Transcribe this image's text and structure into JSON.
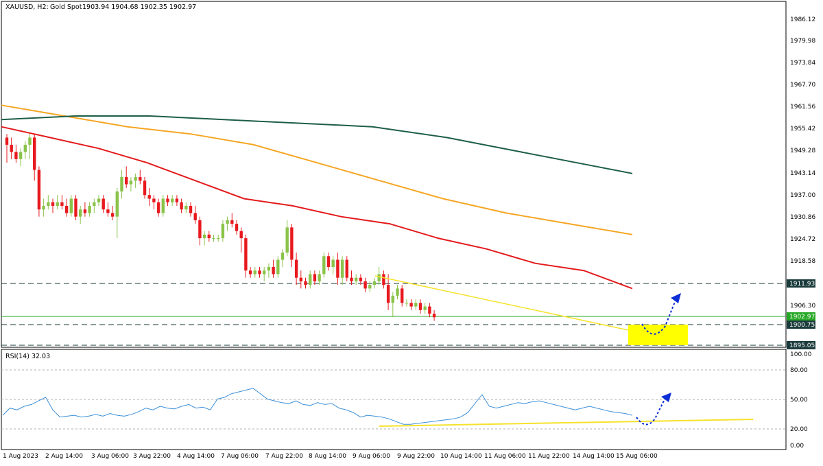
{
  "header": {
    "symbol": "XAUUSD, H2:",
    "description": "Gold Spot",
    "ohlc": "1903.94 1904.68 1902.35 1902.97"
  },
  "colors": {
    "bull": "#8bc34a",
    "bear": "#e8191e",
    "ma_red": "#e31a1c",
    "ma_orange": "#f5a623",
    "ma_green": "#1d5e48",
    "trendline": "#f5e22a",
    "target_zone": "#ffff00",
    "projection": "#0d2ed6",
    "rsi_line": "#3b8fd8",
    "price_line": "#27a827",
    "level_line": "#1a3b3b"
  },
  "axis": {
    "price_ticks": [
      "1986.12",
      "1979.98",
      "1973.84",
      "1967.70",
      "1961.56",
      "1955.42",
      "1949.28",
      "1943.14",
      "1937.00",
      "1930.86",
      "1924.72",
      "1918.58",
      "1906.30"
    ],
    "date_ticks": [
      "1 Aug 2023",
      "2 Aug 14:00",
      "3 Aug 06:00",
      "3 Aug 22:00",
      "4 Aug 14:00",
      "7 Aug 06:00",
      "7 Aug 22:00",
      "8 Aug 14:00",
      "9 Aug 06:00",
      "9 Aug 22:00",
      "10 Aug 14:00",
      "11 Aug 06:00",
      "11 Aug 22:00",
      "14 Aug 14:00",
      "15 Aug 06:00"
    ],
    "level_labels": {
      "resistance": "1911.93",
      "current": "1902.97",
      "support": "1900.75",
      "bottom": "1895.05"
    }
  },
  "rsi": {
    "label": "RSI(14) 32.03",
    "ticks": [
      "100.00",
      "80.00",
      "50.00",
      "20.00",
      "0.00"
    ]
  },
  "chart_data": {
    "type": "candlestick",
    "symbol": "XAUUSD",
    "timeframe": "H2",
    "price_range": [
      1891.5,
      1990.5
    ],
    "candles": [
      {
        "o": 1953,
        "h": 1954,
        "l": 1946,
        "c": 1951
      },
      {
        "o": 1951,
        "h": 1953,
        "l": 1947,
        "c": 1949
      },
      {
        "o": 1949,
        "h": 1951,
        "l": 1946,
        "c": 1947
      },
      {
        "o": 1947,
        "h": 1950,
        "l": 1945,
        "c": 1949
      },
      {
        "o": 1949,
        "h": 1952,
        "l": 1947,
        "c": 1951
      },
      {
        "o": 1951,
        "h": 1954,
        "l": 1947,
        "c": 1953
      },
      {
        "o": 1953,
        "h": 1954,
        "l": 1941,
        "c": 1944
      },
      {
        "o": 1944,
        "h": 1945,
        "l": 1931,
        "c": 1933
      },
      {
        "o": 1933,
        "h": 1936,
        "l": 1931,
        "c": 1934
      },
      {
        "o": 1934,
        "h": 1937,
        "l": 1933,
        "c": 1935
      },
      {
        "o": 1935,
        "h": 1936,
        "l": 1932,
        "c": 1934
      },
      {
        "o": 1934,
        "h": 1937,
        "l": 1933,
        "c": 1935
      },
      {
        "o": 1935,
        "h": 1937,
        "l": 1933,
        "c": 1934
      },
      {
        "o": 1934,
        "h": 1936,
        "l": 1931,
        "c": 1932
      },
      {
        "o": 1932,
        "h": 1937,
        "l": 1931,
        "c": 1936
      },
      {
        "o": 1936,
        "h": 1937,
        "l": 1930,
        "c": 1931
      },
      {
        "o": 1931,
        "h": 1934,
        "l": 1929,
        "c": 1933
      },
      {
        "o": 1933,
        "h": 1935,
        "l": 1931,
        "c": 1932
      },
      {
        "o": 1932,
        "h": 1935,
        "l": 1931,
        "c": 1934
      },
      {
        "o": 1934,
        "h": 1936,
        "l": 1932,
        "c": 1935
      },
      {
        "o": 1935,
        "h": 1937,
        "l": 1934,
        "c": 1936
      },
      {
        "o": 1936,
        "h": 1937,
        "l": 1932,
        "c": 1933
      },
      {
        "o": 1933,
        "h": 1935,
        "l": 1931,
        "c": 1932
      },
      {
        "o": 1932,
        "h": 1934,
        "l": 1930,
        "c": 1931
      },
      {
        "o": 1931,
        "h": 1939,
        "l": 1925,
        "c": 1938
      },
      {
        "o": 1938,
        "h": 1944,
        "l": 1936,
        "c": 1942
      },
      {
        "o": 1942,
        "h": 1945,
        "l": 1939,
        "c": 1940
      },
      {
        "o": 1940,
        "h": 1942,
        "l": 1938,
        "c": 1941
      },
      {
        "o": 1941,
        "h": 1943,
        "l": 1939,
        "c": 1942
      },
      {
        "o": 1942,
        "h": 1944,
        "l": 1940,
        "c": 1941
      },
      {
        "o": 1941,
        "h": 1942,
        "l": 1936,
        "c": 1937
      },
      {
        "o": 1937,
        "h": 1939,
        "l": 1934,
        "c": 1936
      },
      {
        "o": 1936,
        "h": 1937,
        "l": 1933,
        "c": 1935
      },
      {
        "o": 1935,
        "h": 1936,
        "l": 1931,
        "c": 1932
      },
      {
        "o": 1932,
        "h": 1937,
        "l": 1931,
        "c": 1936
      },
      {
        "o": 1936,
        "h": 1937,
        "l": 1934,
        "c": 1935
      },
      {
        "o": 1935,
        "h": 1937,
        "l": 1934,
        "c": 1936
      },
      {
        "o": 1936,
        "h": 1937,
        "l": 1934,
        "c": 1935
      },
      {
        "o": 1935,
        "h": 1936,
        "l": 1932,
        "c": 1933
      },
      {
        "o": 1933,
        "h": 1935,
        "l": 1932,
        "c": 1934
      },
      {
        "o": 1934,
        "h": 1935,
        "l": 1931,
        "c": 1932
      },
      {
        "o": 1932,
        "h": 1934,
        "l": 1929,
        "c": 1930
      },
      {
        "o": 1930,
        "h": 1931,
        "l": 1923,
        "c": 1925
      },
      {
        "o": 1925,
        "h": 1927,
        "l": 1923,
        "c": 1926
      },
      {
        "o": 1926,
        "h": 1927,
        "l": 1924,
        "c": 1925
      },
      {
        "o": 1925,
        "h": 1926,
        "l": 1924,
        "c": 1925
      },
      {
        "o": 1925,
        "h": 1926,
        "l": 1924,
        "c": 1925
      },
      {
        "o": 1925,
        "h": 1930,
        "l": 1924,
        "c": 1929
      },
      {
        "o": 1929,
        "h": 1931,
        "l": 1927,
        "c": 1930
      },
      {
        "o": 1930,
        "h": 1932,
        "l": 1928,
        "c": 1929
      },
      {
        "o": 1929,
        "h": 1930,
        "l": 1926,
        "c": 1927
      },
      {
        "o": 1927,
        "h": 1928,
        "l": 1921,
        "c": 1925
      },
      {
        "o": 1925,
        "h": 1926,
        "l": 1914,
        "c": 1916
      },
      {
        "o": 1916,
        "h": 1917,
        "l": 1914,
        "c": 1915
      },
      {
        "o": 1915,
        "h": 1917,
        "l": 1914,
        "c": 1916
      },
      {
        "o": 1916,
        "h": 1917,
        "l": 1914,
        "c": 1915
      },
      {
        "o": 1915,
        "h": 1917,
        "l": 1913,
        "c": 1916
      },
      {
        "o": 1916,
        "h": 1918,
        "l": 1914,
        "c": 1917
      },
      {
        "o": 1917,
        "h": 1919,
        "l": 1914,
        "c": 1915
      },
      {
        "o": 1915,
        "h": 1920,
        "l": 1914,
        "c": 1919
      },
      {
        "o": 1919,
        "h": 1922,
        "l": 1917,
        "c": 1921
      },
      {
        "o": 1921,
        "h": 1930,
        "l": 1920,
        "c": 1928
      },
      {
        "o": 1928,
        "h": 1929,
        "l": 1917,
        "c": 1919
      },
      {
        "o": 1919,
        "h": 1921,
        "l": 1912,
        "c": 1914
      },
      {
        "o": 1914,
        "h": 1916,
        "l": 1911,
        "c": 1913
      },
      {
        "o": 1913,
        "h": 1914,
        "l": 1911,
        "c": 1912
      },
      {
        "o": 1912,
        "h": 1916,
        "l": 1911,
        "c": 1915
      },
      {
        "o": 1915,
        "h": 1916,
        "l": 1912,
        "c": 1913
      },
      {
        "o": 1913,
        "h": 1916,
        "l": 1912,
        "c": 1915
      },
      {
        "o": 1915,
        "h": 1921,
        "l": 1914,
        "c": 1920
      },
      {
        "o": 1920,
        "h": 1921,
        "l": 1916,
        "c": 1917
      },
      {
        "o": 1917,
        "h": 1920,
        "l": 1915,
        "c": 1919
      },
      {
        "o": 1919,
        "h": 1921,
        "l": 1912,
        "c": 1914
      },
      {
        "o": 1914,
        "h": 1920,
        "l": 1912,
        "c": 1919
      },
      {
        "o": 1919,
        "h": 1920,
        "l": 1913,
        "c": 1914
      },
      {
        "o": 1914,
        "h": 1916,
        "l": 1912,
        "c": 1913
      },
      {
        "o": 1913,
        "h": 1915,
        "l": 1912,
        "c": 1914
      },
      {
        "o": 1914,
        "h": 1915,
        "l": 1912,
        "c": 1913
      },
      {
        "o": 1913,
        "h": 1914,
        "l": 1910,
        "c": 1911
      },
      {
        "o": 1911,
        "h": 1913,
        "l": 1910,
        "c": 1912
      },
      {
        "o": 1912,
        "h": 1914,
        "l": 1911,
        "c": 1913
      },
      {
        "o": 1913,
        "h": 1917,
        "l": 1912,
        "c": 1915
      },
      {
        "o": 1915,
        "h": 1916,
        "l": 1911,
        "c": 1912
      },
      {
        "o": 1912,
        "h": 1915,
        "l": 1905,
        "c": 1907
      },
      {
        "o": 1907,
        "h": 1910,
        "l": 1903,
        "c": 1909
      },
      {
        "o": 1909,
        "h": 1912,
        "l": 1908,
        "c": 1911
      },
      {
        "o": 1911,
        "h": 1912,
        "l": 1906,
        "c": 1907
      },
      {
        "o": 1907,
        "h": 1908,
        "l": 1906,
        "c": 1907
      },
      {
        "o": 1907,
        "h": 1908,
        "l": 1905,
        "c": 1906
      },
      {
        "o": 1906,
        "h": 1908,
        "l": 1905,
        "c": 1907
      },
      {
        "o": 1907,
        "h": 1908,
        "l": 1904,
        "c": 1905
      },
      {
        "o": 1905,
        "h": 1907,
        "l": 1904,
        "c": 1906
      },
      {
        "o": 1906,
        "h": 1907,
        "l": 1903,
        "c": 1904
      },
      {
        "o": 1904,
        "h": 1905,
        "l": 1902,
        "c": 1903
      }
    ],
    "moving_averages": [
      {
        "color": "red",
        "values": [
          {
            "x": 0,
            "y": 1956
          },
          {
            "x": 10,
            "y": 1953
          },
          {
            "x": 20,
            "y": 1950
          },
          {
            "x": 30,
            "y": 1946
          },
          {
            "x": 40,
            "y": 1941
          },
          {
            "x": 50,
            "y": 1936
          },
          {
            "x": 60,
            "y": 1934
          },
          {
            "x": 70,
            "y": 1931
          },
          {
            "x": 80,
            "y": 1929
          },
          {
            "x": 90,
            "y": 1925
          },
          {
            "x": 100,
            "y": 1922
          },
          {
            "x": 110,
            "y": 1918
          },
          {
            "x": 120,
            "y": 1916
          },
          {
            "x": 130,
            "y": 1911
          }
        ]
      },
      {
        "color": "orange",
        "values": [
          {
            "x": 0,
            "y": 1962
          },
          {
            "x": 20,
            "y": 1959
          },
          {
            "x": 40,
            "y": 1956
          },
          {
            "x": 60,
            "y": 1954
          },
          {
            "x": 80,
            "y": 1951
          },
          {
            "x": 100,
            "y": 1946
          },
          {
            "x": 120,
            "y": 1941
          },
          {
            "x": 140,
            "y": 1936
          },
          {
            "x": 160,
            "y": 1932
          },
          {
            "x": 180,
            "y": 1929
          },
          {
            "x": 200,
            "y": 1926
          }
        ]
      },
      {
        "color": "green",
        "values": [
          {
            "x": 0,
            "y": 1958
          },
          {
            "x": 40,
            "y": 1959
          },
          {
            "x": 80,
            "y": 1959
          },
          {
            "x": 120,
            "y": 1958
          },
          {
            "x": 160,
            "y": 1957
          },
          {
            "x": 200,
            "y": 1956
          },
          {
            "x": 240,
            "y": 1953
          },
          {
            "x": 280,
            "y": 1949
          },
          {
            "x": 320,
            "y": 1945
          },
          {
            "x": 340,
            "y": 1943
          }
        ]
      }
    ],
    "levels": [
      1911.93,
      1902.97,
      1900.75,
      1895.05
    ],
    "trendline": [
      {
        "price": 1914,
        "label": "9 Aug 06:00"
      },
      {
        "price": 1898,
        "label": "15 Aug 06:00"
      }
    ],
    "target_zone": {
      "from": 1895.05,
      "to": 1900.75
    },
    "rsi": {
      "period": 14,
      "value": 32.03,
      "range": [
        0,
        100
      ],
      "levels": [
        80,
        50,
        20
      ],
      "values": [
        32,
        40,
        38,
        42,
        44,
        48,
        52,
        38,
        30,
        31,
        32,
        30,
        31,
        33,
        31,
        34,
        32,
        31,
        33,
        36,
        40,
        38,
        42,
        40,
        39,
        42,
        44,
        40,
        41,
        38,
        50,
        52,
        56,
        58,
        60,
        62,
        56,
        50,
        48,
        46,
        45,
        48,
        44,
        43,
        46,
        44,
        45,
        40,
        38,
        35,
        30,
        32,
        31,
        30,
        28,
        25,
        22,
        22,
        23,
        24,
        25,
        26,
        27,
        28,
        30,
        35,
        45,
        55,
        42,
        40,
        42,
        44,
        46,
        45,
        47,
        48,
        46,
        44,
        42,
        40,
        38,
        40,
        42,
        40,
        38,
        36,
        35,
        34,
        32
      ]
    }
  }
}
